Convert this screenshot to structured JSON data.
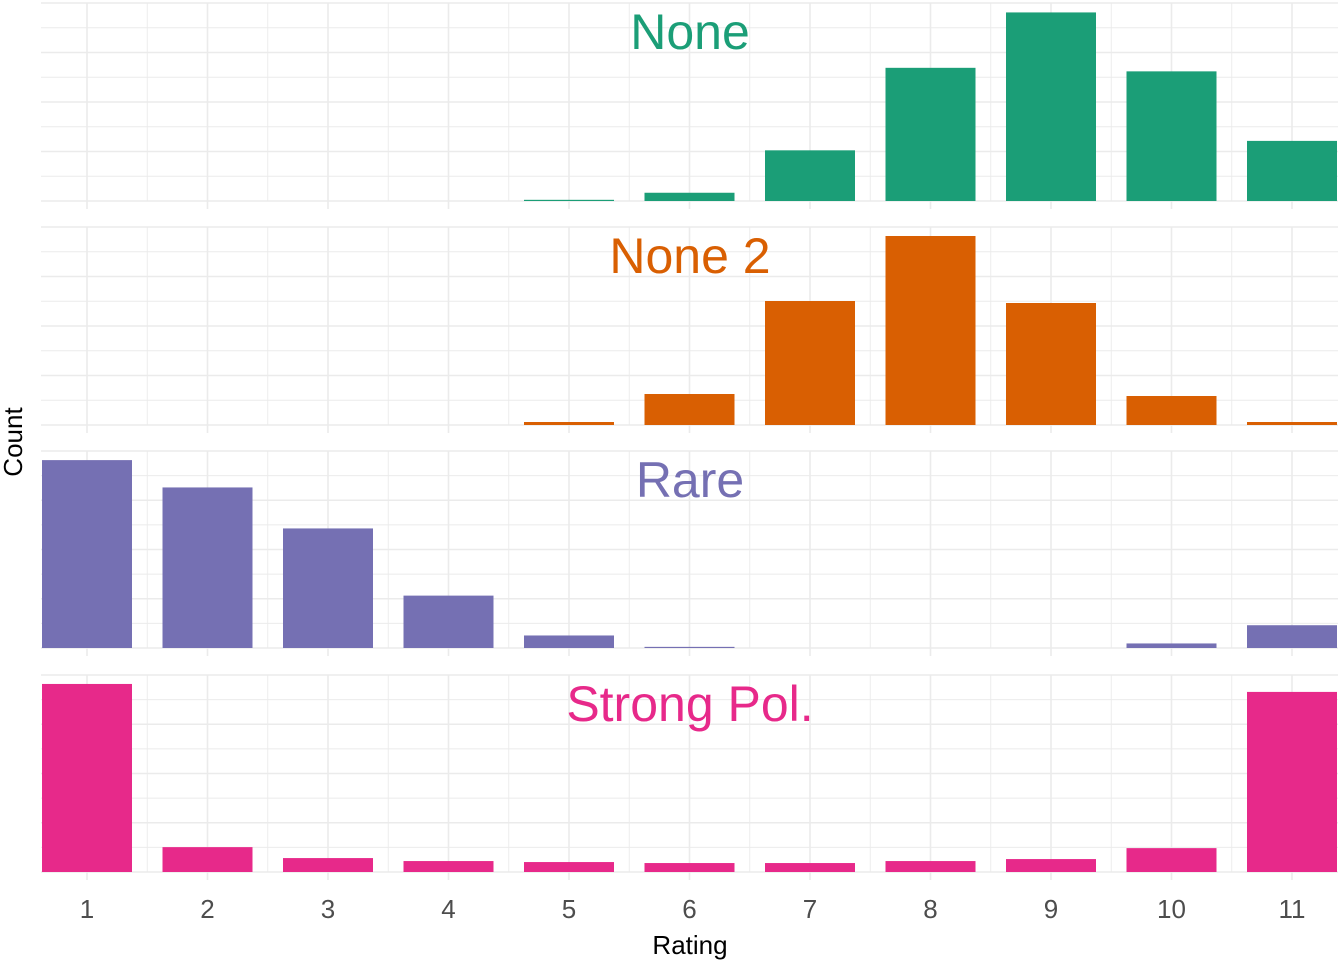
{
  "chart_data": {
    "type": "bar",
    "xlabel": "Rating",
    "ylabel": "Count",
    "categories": [
      "1",
      "2",
      "3",
      "4",
      "5",
      "6",
      "7",
      "8",
      "9",
      "10",
      "11"
    ],
    "grid": true,
    "legend": "none",
    "facets": [
      {
        "title": "None",
        "color": "#1B9E77",
        "values": [
          0,
          0,
          0,
          0,
          1,
          7,
          43,
          113,
          160,
          110,
          51
        ],
        "ylim": [
          0,
          168
        ]
      },
      {
        "title": "None 2",
        "color": "#D95F02",
        "values": [
          0,
          0,
          0,
          0,
          3,
          31,
          124,
          189,
          122,
          29,
          3
        ],
        "ylim": [
          0,
          198
        ]
      },
      {
        "title": "Rare",
        "color": "#7570B3",
        "values": [
          165,
          141,
          105,
          46,
          11,
          1,
          0,
          0,
          0,
          4,
          20
        ],
        "ylim": [
          0,
          173
        ]
      },
      {
        "title": "Strong Pol.",
        "color": "#E7298A",
        "values": [
          189,
          25,
          14,
          11,
          10,
          9,
          9,
          11,
          13,
          24,
          181
        ],
        "ylim": [
          0,
          198
        ]
      }
    ]
  }
}
